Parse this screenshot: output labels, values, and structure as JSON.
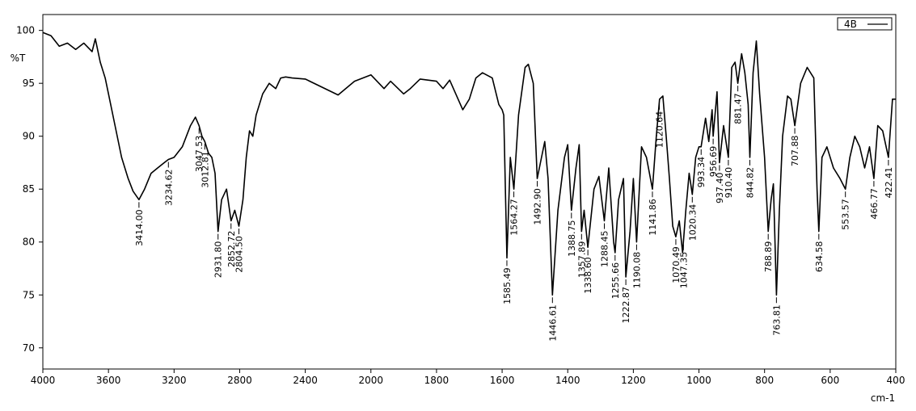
{
  "chart_data": {
    "type": "line",
    "y_label": "%T",
    "x_label": "cm-1",
    "xlim": [
      4000,
      400
    ],
    "ylim": [
      68,
      101.5
    ],
    "xticks": [
      4000,
      3600,
      3200,
      2800,
      2400,
      2000,
      1800,
      1600,
      1400,
      1200,
      1000,
      800,
      600,
      400
    ],
    "yticks": [
      70,
      75,
      80,
      85,
      90,
      95,
      100
    ],
    "legend": "top-right",
    "x": [
      4000,
      3950,
      3900,
      3850,
      3800,
      3750,
      3700,
      3680,
      3650,
      3620,
      3600,
      3560,
      3520,
      3480,
      3450,
      3414,
      3380,
      3340,
      3300,
      3260,
      3234.62,
      3200,
      3150,
      3100,
      3070,
      3047.53,
      3030,
      3012.81,
      2990,
      2970,
      2950,
      2931.8,
      2910,
      2880,
      2852.72,
      2830,
      2804.5,
      2780,
      2760,
      2740,
      2720,
      2700,
      2660,
      2620,
      2580,
      2550,
      2520,
      2480,
      2400,
      2200,
      2100,
      2000,
      1960,
      1940,
      1900,
      1880,
      1850,
      1800,
      1780,
      1760,
      1720,
      1700,
      1680,
      1660,
      1630,
      1610,
      1600,
      1595,
      1590,
      1585.49,
      1575,
      1564.27,
      1550,
      1530,
      1520,
      1505,
      1492.9,
      1480,
      1470,
      1460,
      1446.61,
      1430,
      1410,
      1400,
      1388.75,
      1375,
      1365,
      1357.89,
      1350,
      1338.6,
      1320,
      1305,
      1288.45,
      1275,
      1260,
      1255.66,
      1245,
      1230,
      1222.87,
      1210,
      1200,
      1190.08,
      1175,
      1160,
      1141.86,
      1130,
      1120,
      1110,
      1100,
      1090,
      1080,
      1070.49,
      1060,
      1050,
      1047.35,
      1040,
      1030,
      1020.34,
      1010,
      1000,
      993.34,
      980,
      970,
      960,
      956.69,
      945,
      937.4,
      925,
      910.4,
      900,
      890,
      881.47,
      870,
      860,
      850,
      844.82,
      835,
      825,
      815,
      800,
      788.89,
      780,
      773,
      763.81,
      755,
      745,
      730,
      720,
      707.88,
      690,
      670,
      650,
      640,
      634.58,
      625,
      610,
      590,
      570,
      553.57,
      540,
      525,
      510,
      495,
      480,
      466.77,
      455,
      440,
      422.41,
      410,
      400
    ],
    "series": [
      {
        "name": "4B",
        "color": "#000000",
        "values": [
          99.8,
          99.5,
          98.5,
          98.8,
          98.2,
          98.8,
          98.0,
          99.2,
          97.0,
          95.5,
          94,
          91,
          88,
          86,
          84.8,
          84.0,
          85,
          86.5,
          87,
          87.5,
          87.8,
          88,
          89,
          91,
          91.8,
          91,
          90,
          89.5,
          88.4,
          88,
          86.5,
          81.0,
          84,
          85,
          82.0,
          83,
          81.5,
          84,
          88,
          90.5,
          90,
          92,
          94,
          95,
          94.5,
          95.5,
          95.6,
          95.5,
          95.4,
          93.9,
          95.2,
          95.8,
          94.5,
          95.2,
          94.0,
          94.5,
          95.4,
          95.2,
          94.5,
          95.3,
          92.5,
          93.5,
          95.5,
          96,
          95.5,
          93,
          92.5,
          92,
          85,
          78.5,
          88,
          85,
          92,
          96.5,
          96.8,
          95,
          86,
          88,
          89.5,
          86,
          75,
          83,
          88,
          89.2,
          83,
          87,
          89.2,
          81,
          83,
          79.5,
          85,
          86.2,
          82,
          87,
          80,
          79,
          84,
          86,
          76.7,
          81,
          86,
          80,
          89,
          88,
          85,
          90,
          93.5,
          93.8,
          90,
          86,
          81.5,
          80.5,
          82,
          79,
          80,
          83,
          86.5,
          84.5,
          88,
          89,
          89,
          91.7,
          89.5,
          92.5,
          90,
          94.2,
          87.5,
          91,
          88,
          96.5,
          97,
          95,
          97.8,
          96,
          93,
          88,
          96,
          99,
          94,
          88,
          81,
          84,
          85.5,
          75,
          83,
          90,
          93.8,
          93.5,
          91,
          95,
          96.5,
          95.5,
          85,
          81,
          88,
          89,
          87,
          86,
          85,
          88,
          90,
          89,
          87,
          89,
          86,
          91,
          90.5,
          88,
          93.5,
          93.5
        ]
      }
    ],
    "peaks": [
      {
        "value": 3414,
        "label": "3414.00"
      },
      3234.62,
      3047.53,
      3012.81,
      {
        "value": 2931.8,
        "label": "2931.80"
      },
      2852.72,
      {
        "value": 2804.5,
        "label": "2804.50"
      },
      1585.49,
      1564.27,
      {
        "value": 1492.9,
        "label": "1492.90"
      },
      1446.61,
      1388.75,
      1357.89,
      {
        "value": 1338.6,
        "label": "1338.60"
      },
      1288.45,
      1255.66,
      1222.87,
      1190.08,
      1141.86,
      1120.64,
      1070.49,
      1047.35,
      1020.34,
      993.34,
      956.69,
      {
        "value": 937.4,
        "label": "937.40"
      },
      {
        "value": 910.4,
        "label": "910.40"
      },
      881.47,
      844.82,
      788.89,
      763.81,
      707.88,
      634.58,
      553.57,
      466.77,
      422.41
    ]
  }
}
